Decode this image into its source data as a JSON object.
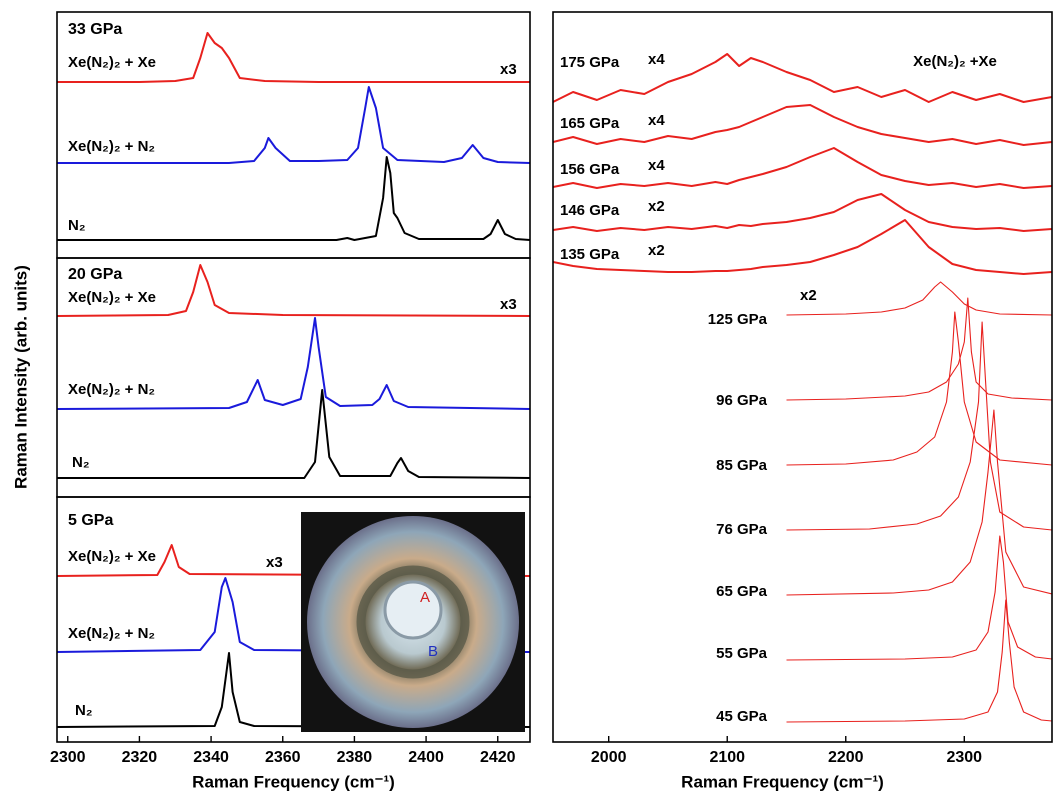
{
  "chart_data": [
    {
      "type": "line",
      "title": "33 GPa",
      "ylabel": "Raman Intensity (arb. units)",
      "xlim": [
        2297,
        2429
      ],
      "ylim": [
        0,
        246
      ],
      "series": [
        {
          "name": "Xe(N₂)₂ + Xe",
          "color": "#e8211e",
          "multiplier": "x3",
          "x": [
            2297,
            2320,
            2330,
            2335,
            2337,
            2339,
            2341,
            2343,
            2345,
            2348,
            2355,
            2370,
            2429
          ],
          "values": [
            176,
            176,
            177,
            180,
            200,
            225,
            215,
            210,
            200,
            180,
            177,
            176,
            176
          ]
        },
        {
          "name": "Xe(N₂)₂ + N₂",
          "color": "#1a1adb",
          "x": [
            2297,
            2345,
            2352,
            2355,
            2356,
            2358,
            2362,
            2370,
            2378,
            2381,
            2383,
            2384,
            2386,
            2388,
            2392,
            2405,
            2410,
            2413,
            2416,
            2420,
            2429
          ],
          "values": [
            95,
            95,
            97,
            110,
            120,
            110,
            97,
            97,
            98,
            110,
            150,
            171,
            150,
            110,
            98,
            96,
            100,
            113,
            100,
            96,
            95
          ]
        },
        {
          "name": "N₂",
          "color": "#000000",
          "x": [
            2297,
            2375,
            2378,
            2380,
            2386,
            2388,
            2389,
            2390,
            2391,
            2392,
            2394,
            2398,
            2416,
            2418,
            2420,
            2422,
            2425,
            2429
          ],
          "values": [
            18,
            18,
            20,
            18,
            22,
            60,
            101,
            85,
            45,
            40,
            25,
            19,
            19,
            24,
            38,
            24,
            19,
            18
          ]
        }
      ]
    },
    {
      "type": "line",
      "title": "20 GPa",
      "xlim": [
        2297,
        2429
      ],
      "ylim": [
        0,
        239
      ],
      "series": [
        {
          "name": "Xe(N₂)₂ + Xe",
          "color": "#e8211e",
          "multiplier": "x3",
          "x": [
            2297,
            2328,
            2333,
            2335,
            2337,
            2339,
            2341,
            2345,
            2360,
            2429
          ],
          "values": [
            181,
            182,
            186,
            205,
            232,
            215,
            192,
            184,
            182,
            181
          ]
        },
        {
          "name": "Xe(N₂)₂ + N₂",
          "color": "#1a1adb",
          "x": [
            2297,
            2345,
            2350,
            2353,
            2355,
            2360,
            2365,
            2367,
            2369,
            2370,
            2372,
            2376,
            2385,
            2387,
            2389,
            2391,
            2395,
            2429
          ],
          "values": [
            88,
            89,
            95,
            117,
            97,
            92,
            98,
            130,
            179,
            150,
            100,
            91,
            92,
            98,
            112,
            96,
            90,
            88
          ]
        },
        {
          "name": "N₂",
          "color": "#000000",
          "x": [
            2297,
            2366,
            2369,
            2371,
            2373,
            2376,
            2390,
            2392,
            2393,
            2395,
            2398,
            2429
          ],
          "values": [
            19,
            19,
            35,
            107,
            40,
            21,
            21,
            34,
            39,
            26,
            20,
            19
          ]
        }
      ]
    },
    {
      "type": "line",
      "title": "5 GPa",
      "xlim": [
        2297,
        2429
      ],
      "ylim": [
        0,
        245
      ],
      "xticks": [
        2300,
        2320,
        2340,
        2360,
        2380,
        2400,
        2420
      ],
      "xlabel": "Raman Frequency (cm⁻¹)",
      "inset_labels": [
        "A",
        "B"
      ],
      "series": [
        {
          "name": "Xe(N₂)₂ + Xe",
          "color": "#e8211e",
          "multiplier": "x3",
          "x": [
            2297,
            2325,
            2327,
            2329,
            2331,
            2334,
            2429
          ],
          "values": [
            166,
            167,
            180,
            197,
            175,
            168,
            166
          ]
        },
        {
          "name": "Xe(N₂)₂ + N₂",
          "color": "#1a1adb",
          "x": [
            2297,
            2337,
            2341,
            2343,
            2344,
            2346,
            2348,
            2352,
            2429
          ],
          "values": [
            90,
            92,
            110,
            155,
            164,
            140,
            100,
            92,
            90
          ]
        },
        {
          "name": "N₂",
          "color": "#000000",
          "x": [
            2297,
            2341,
            2343,
            2345,
            2346,
            2348,
            2352,
            2429
          ],
          "values": [
            15,
            16,
            35,
            89,
            50,
            20,
            16,
            15
          ]
        }
      ]
    },
    {
      "type": "line",
      "annotation": "Xe(N₂)₂ +Xe",
      "xlim": [
        1953,
        2374
      ],
      "ylim": [
        0,
        730
      ],
      "xticks": [
        2000,
        2100,
        2200,
        2300
      ],
      "xlabel": "Raman Frequency (cm⁻¹)",
      "series": [
        {
          "name": "175 GPa",
          "color": "#e8211e",
          "multiplier": "x4",
          "x": [
            1953,
            1970,
            1990,
            2010,
            2030,
            2050,
            2070,
            2090,
            2100,
            2110,
            2120,
            2130,
            2150,
            2170,
            2190,
            2210,
            2230,
            2250,
            2270,
            2290,
            2310,
            2330,
            2350,
            2374
          ],
          "values": [
            640,
            650,
            642,
            652,
            648,
            660,
            668,
            680,
            688,
            676,
            684,
            680,
            670,
            662,
            650,
            655,
            645,
            652,
            640,
            650,
            642,
            648,
            640,
            645
          ]
        },
        {
          "name": "165 GPa",
          "color": "#e8211e",
          "multiplier": "x4",
          "x": [
            1953,
            1970,
            1990,
            2010,
            2030,
            2050,
            2070,
            2090,
            2100,
            2110,
            2120,
            2130,
            2150,
            2170,
            2190,
            2210,
            2230,
            2250,
            2270,
            2290,
            2310,
            2330,
            2350,
            2374
          ],
          "values": [
            600,
            605,
            598,
            603,
            600,
            606,
            603,
            610,
            612,
            615,
            620,
            625,
            635,
            637,
            625,
            615,
            608,
            604,
            600,
            603,
            598,
            602,
            597,
            600
          ]
        },
        {
          "name": "156 GPa",
          "color": "#e8211e",
          "multiplier": "x4",
          "x": [
            1953,
            1970,
            1990,
            2010,
            2030,
            2050,
            2070,
            2090,
            2100,
            2110,
            2120,
            2130,
            2150,
            2170,
            2190,
            2210,
            2230,
            2250,
            2270,
            2290,
            2310,
            2330,
            2350,
            2374
          ],
          "values": [
            555,
            559,
            554,
            558,
            556,
            559,
            556,
            560,
            558,
            562,
            565,
            568,
            575,
            585,
            594,
            580,
            567,
            561,
            557,
            559,
            555,
            558,
            554,
            556
          ]
        },
        {
          "name": "146 GPa",
          "color": "#e8211e",
          "multiplier": "x2",
          "x": [
            1953,
            1970,
            1990,
            2010,
            2030,
            2050,
            2070,
            2090,
            2100,
            2110,
            2120,
            2130,
            2150,
            2170,
            2190,
            2210,
            2230,
            2250,
            2270,
            2290,
            2310,
            2330,
            2350,
            2374
          ],
          "values": [
            512,
            515,
            511,
            514,
            512,
            515,
            513,
            516,
            514,
            517,
            516,
            518,
            520,
            524,
            530,
            542,
            548,
            532,
            520,
            515,
            513,
            514,
            511,
            513
          ]
        },
        {
          "name": "135 GPa",
          "color": "#e8211e",
          "multiplier": "x2",
          "x": [
            1953,
            1970,
            1990,
            2010,
            2030,
            2050,
            2070,
            2090,
            2100,
            2110,
            2120,
            2130,
            2150,
            2170,
            2190,
            2210,
            2230,
            2250,
            2270,
            2290,
            2310,
            2330,
            2350,
            2374
          ],
          "values": [
            480,
            476,
            473,
            472,
            471,
            470,
            470,
            471,
            471,
            472,
            473,
            475,
            477,
            480,
            487,
            495,
            508,
            522,
            495,
            478,
            472,
            470,
            468,
            470
          ]
        },
        {
          "name": "125 GPa",
          "color": "#e8211e",
          "multiplier": "x2",
          "x": [
            2150,
            2200,
            2230,
            2250,
            2265,
            2275,
            2280,
            2290,
            2300,
            2310,
            2330,
            2374
          ],
          "values": [
            427,
            428,
            430,
            434,
            442,
            455,
            460,
            450,
            438,
            432,
            428,
            427
          ]
        },
        {
          "name": "96 GPa",
          "color": "#e8211e",
          "x": [
            2150,
            2200,
            2250,
            2270,
            2285,
            2295,
            2300,
            2303,
            2306,
            2310,
            2320,
            2340,
            2374
          ],
          "values": [
            342,
            343,
            346,
            350,
            360,
            378,
            400,
            444,
            390,
            360,
            348,
            344,
            342
          ]
        },
        {
          "name": "85 GPa",
          "color": "#e8211e",
          "x": [
            2150,
            2200,
            2240,
            2260,
            2275,
            2285,
            2290,
            2292,
            2295,
            2300,
            2310,
            2330,
            2374
          ],
          "values": [
            277,
            278,
            282,
            290,
            305,
            340,
            390,
            430,
            400,
            340,
            300,
            282,
            277
          ]
        },
        {
          "name": "76 GPa",
          "color": "#e8211e",
          "x": [
            2150,
            2220,
            2260,
            2280,
            2295,
            2305,
            2312,
            2315,
            2318,
            2322,
            2330,
            2350,
            2374
          ],
          "values": [
            212,
            213,
            218,
            226,
            245,
            280,
            340,
            420,
            360,
            280,
            230,
            215,
            212
          ]
        },
        {
          "name": "65 GPa",
          "color": "#e8211e",
          "x": [
            2150,
            2240,
            2270,
            2290,
            2305,
            2315,
            2320,
            2325,
            2328,
            2335,
            2350,
            2374
          ],
          "values": [
            147,
            149,
            152,
            160,
            180,
            220,
            270,
            332,
            280,
            190,
            155,
            148
          ]
        },
        {
          "name": "55 GPa",
          "color": "#e8211e",
          "x": [
            2150,
            2250,
            2290,
            2310,
            2320,
            2326,
            2330,
            2333,
            2337,
            2345,
            2360,
            2374
          ],
          "values": [
            82,
            83,
            85,
            92,
            110,
            150,
            206,
            180,
            120,
            95,
            85,
            83
          ]
        },
        {
          "name": "45 GPa",
          "color": "#e8211e",
          "x": [
            2150,
            2250,
            2300,
            2320,
            2328,
            2332,
            2335,
            2338,
            2342,
            2350,
            2365,
            2374
          ],
          "values": [
            20,
            21,
            23,
            30,
            50,
            90,
            142,
            100,
            55,
            30,
            22,
            21
          ]
        }
      ]
    }
  ]
}
